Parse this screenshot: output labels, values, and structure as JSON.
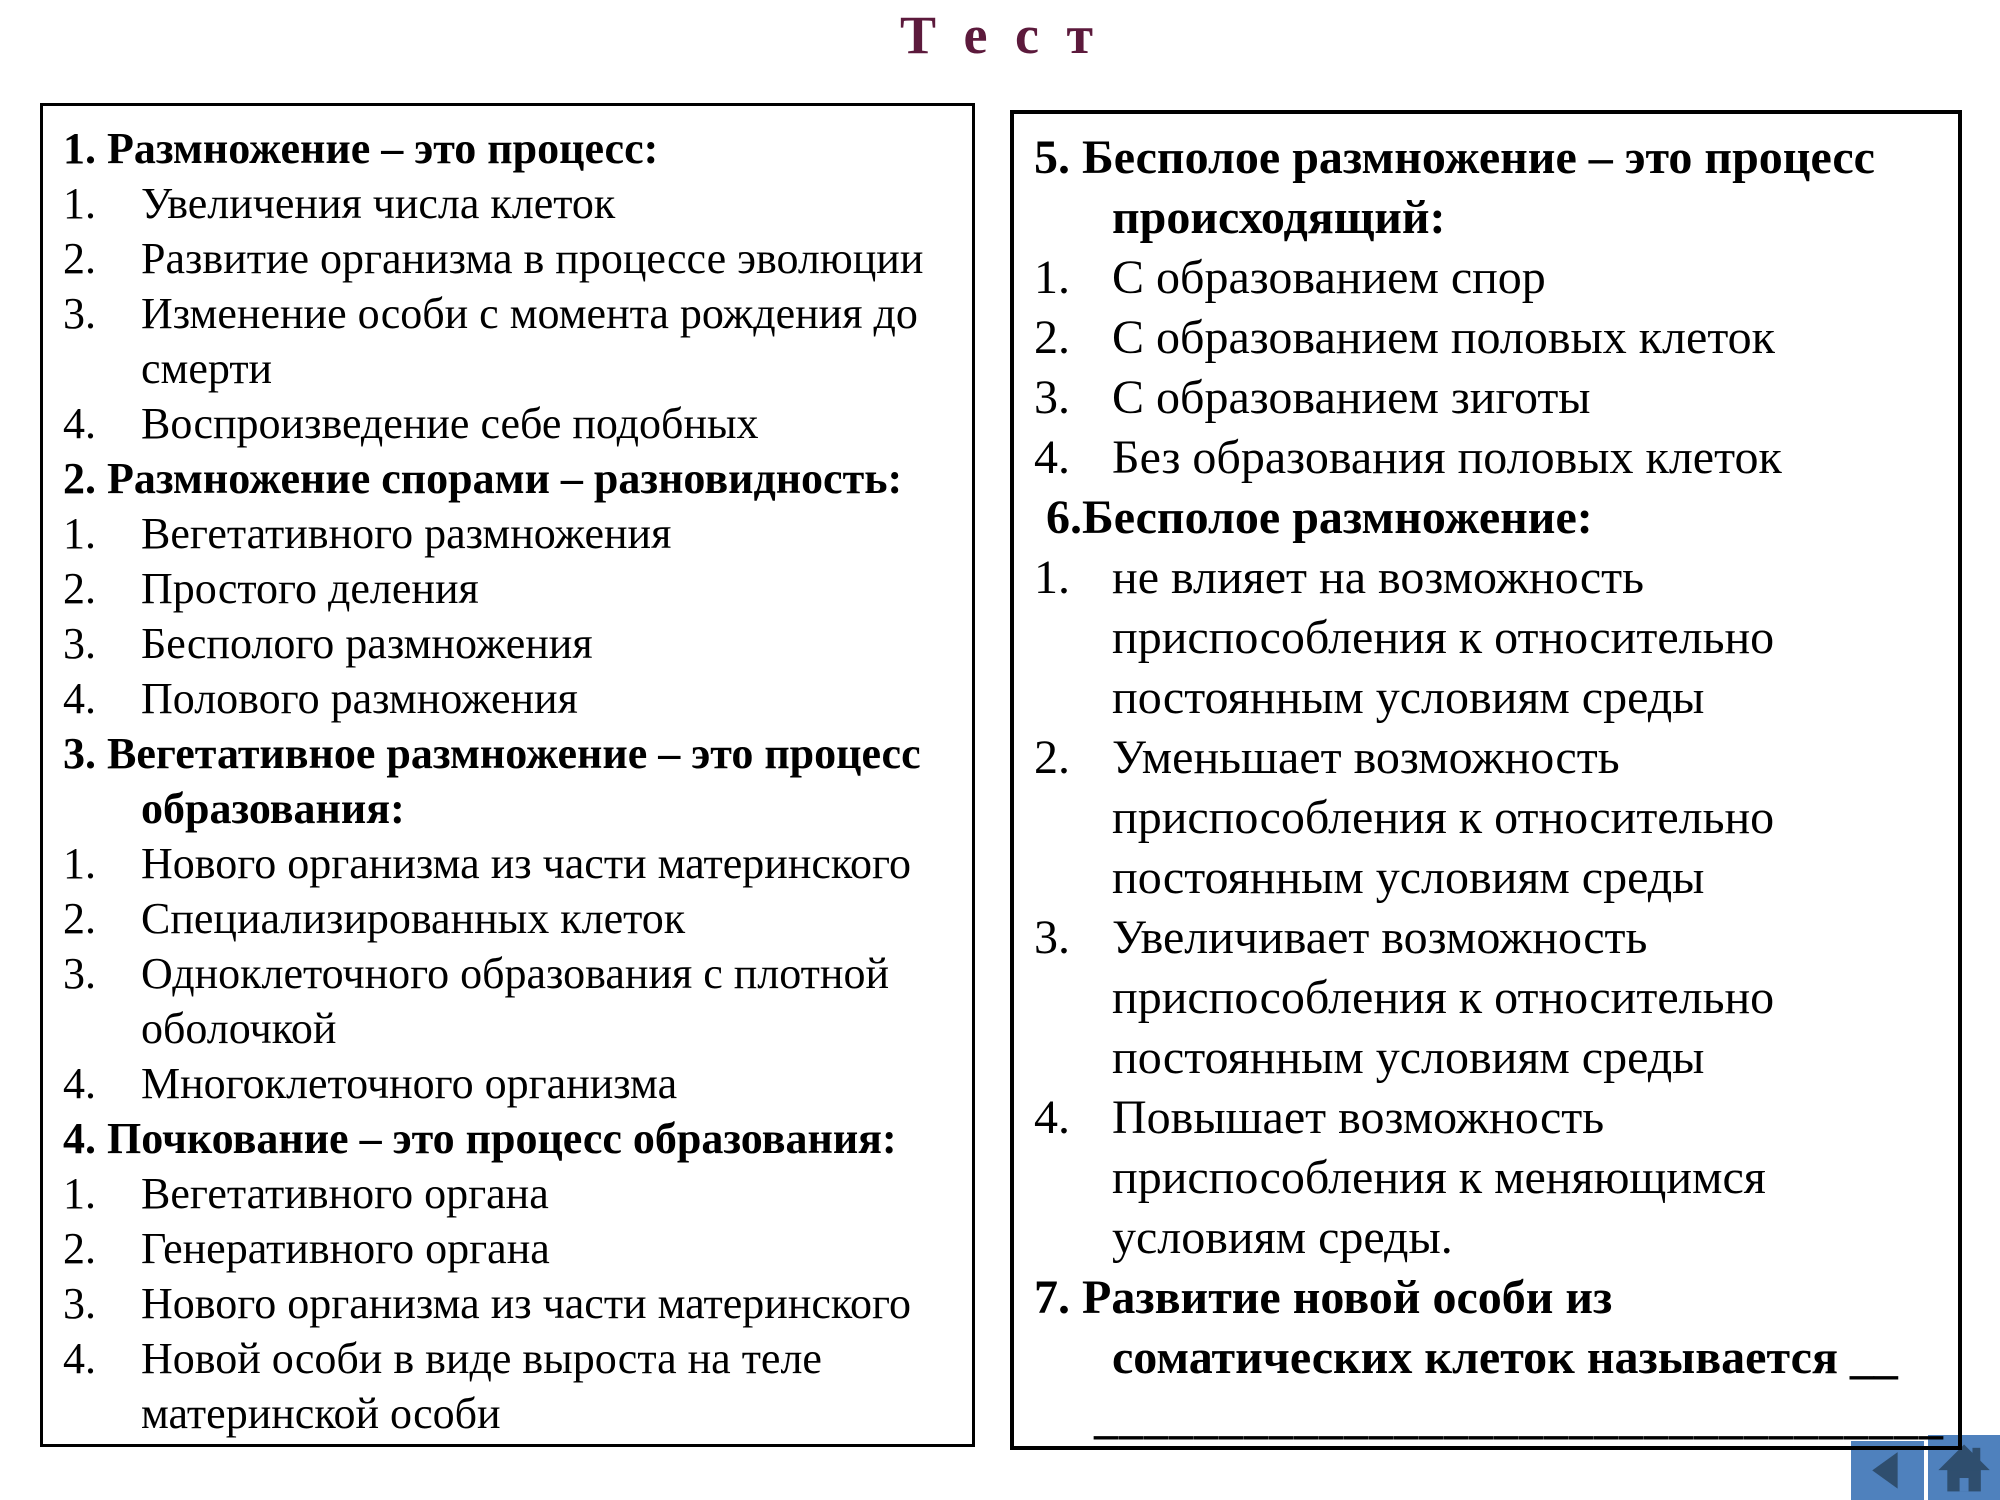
{
  "title": {
    "text": "Т е с т",
    "color": "#5c1a3c"
  },
  "left_box": {
    "blocks": [
      {
        "t": "q",
        "lines": [
          "1. Размножение – это процесс:"
        ]
      },
      {
        "t": "o",
        "n": "1.",
        "lines": [
          "Увеличения числа клеток"
        ]
      },
      {
        "t": "o",
        "n": "2.",
        "lines": [
          "Развитие организма в процессе эволюции"
        ]
      },
      {
        "t": "o",
        "n": "3.",
        "lines": [
          "Изменение особи с момента рождения до",
          "смерти"
        ]
      },
      {
        "t": "o",
        "n": "4.",
        "lines": [
          "Воспроизведение себе подобных"
        ]
      },
      {
        "t": "q",
        "lines": [
          "2. Размножение спорами – разновидность:"
        ]
      },
      {
        "t": "o",
        "n": "1.",
        "lines": [
          "Вегетативного размножения"
        ]
      },
      {
        "t": "o",
        "n": "2.",
        "lines": [
          "Простого деления"
        ]
      },
      {
        "t": "o",
        "n": "3.",
        "lines": [
          "Бесполого размножения"
        ]
      },
      {
        "t": "o",
        "n": "4.",
        "lines": [
          "Полового размножения"
        ]
      },
      {
        "t": "q",
        "lines": [
          "3. Вегетативное размножение – это процесс",
          "образования:"
        ]
      },
      {
        "t": "o",
        "n": "1.",
        "lines": [
          "Нового организма из части материнского"
        ]
      },
      {
        "t": "o",
        "n": "2.",
        "lines": [
          "Специализированных клеток"
        ]
      },
      {
        "t": "o",
        "n": "3.",
        "lines": [
          "Одноклеточного образования с плотной",
          "оболочкой"
        ]
      },
      {
        "t": "o",
        "n": "4.",
        "lines": [
          "Многоклеточного организма"
        ]
      },
      {
        "t": "q",
        "lines": [
          "4. Почкование – это процесс образования:"
        ]
      },
      {
        "t": "o",
        "n": "1.",
        "lines": [
          "Вегетативного органа"
        ]
      },
      {
        "t": "o",
        "n": "2.",
        "lines": [
          "Генеративного органа"
        ]
      },
      {
        "t": "o",
        "n": "3.",
        "lines": [
          "Нового организма из части материнского"
        ]
      },
      {
        "t": "o",
        "n": "4.",
        "lines": [
          "Новой особи в виде выроста на теле",
          "материнской особи"
        ]
      }
    ]
  },
  "right_box": {
    "blocks": [
      {
        "t": "q",
        "lines": [
          "5. Бесполое размножение – это процесс",
          "происходящий:"
        ]
      },
      {
        "t": "o",
        "n": "1.",
        "lines": [
          "С образованием спор"
        ]
      },
      {
        "t": "o",
        "n": "2.",
        "lines": [
          "С образованием половых клеток"
        ]
      },
      {
        "t": "o",
        "n": "3.",
        "lines": [
          "С образованием зиготы"
        ]
      },
      {
        "t": "o",
        "n": "4.",
        "lines": [
          "Без образования половых клеток"
        ]
      },
      {
        "t": "q",
        "lines": [
          " 6.Бесполое размножение:"
        ]
      },
      {
        "t": "o",
        "n": "1.",
        "lines": [
          "не влияет на возможность",
          "приспособления к относительно",
          "постоянным условиям среды"
        ]
      },
      {
        "t": "o",
        "n": "2.",
        "lines": [
          "Уменьшает возможность",
          "приспособления к относительно",
          "постоянным условиям среды"
        ]
      },
      {
        "t": "o",
        "n": "3.",
        "lines": [
          "Увеличивает возможность",
          "приспособления к относительно",
          "постоянным условиям среды"
        ]
      },
      {
        "t": "o",
        "n": "4.",
        "lines": [
          "Повышает возможность",
          "приспособления к меняющимся",
          "условиям среды."
        ]
      },
      {
        "t": "q",
        "lines": [
          "7. Развитие новой особи из",
          "соматических клеток называется __"
        ]
      },
      {
        "t": "blank",
        "lines": [
          "__________________________________"
        ]
      }
    ]
  },
  "nav": {
    "button_color": "#4f81bd",
    "icon_color": "#2f4e6e",
    "back_icon": "back-arrow-icon",
    "home_icon": "home-icon"
  }
}
